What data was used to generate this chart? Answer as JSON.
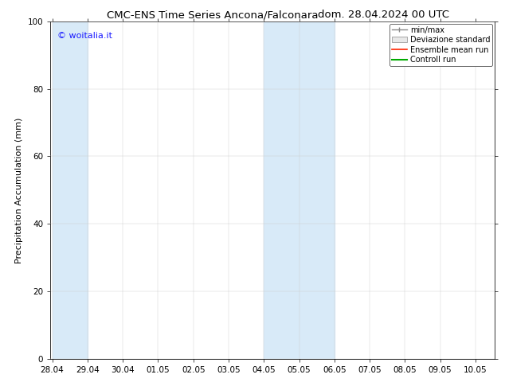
{
  "title_left": "CMC-ENS Time Series Ancona/Falconara",
  "title_right": "dom. 28.04.2024 00 UTC",
  "ylabel": "Precipitation Accumulation (mm)",
  "watermark": "© woitalia.it",
  "watermark_color": "#1a1aff",
  "ylim": [
    0,
    100
  ],
  "x_tick_labels": [
    "28.04",
    "29.04",
    "30.04",
    "01.05",
    "02.05",
    "03.05",
    "04.05",
    "05.05",
    "06.05",
    "07.05",
    "08.05",
    "09.05",
    "10.05"
  ],
  "x_tick_positions": [
    0,
    1,
    2,
    3,
    4,
    5,
    6,
    7,
    8,
    9,
    10,
    11,
    12
  ],
  "shaded_bands": [
    {
      "x_start": 0.0,
      "x_end": 1.0
    },
    {
      "x_start": 6.0,
      "x_end": 8.0
    }
  ],
  "shaded_color": "#d8eaf8",
  "background_color": "#ffffff",
  "plot_bg_color": "#ffffff",
  "grid_color": "#cccccc",
  "border_color": "#333333",
  "legend_entries": [
    {
      "label": "min/max",
      "color": "#999999",
      "style": "line"
    },
    {
      "label": "Deviazione standard",
      "color": "#dddddd",
      "style": "fill"
    },
    {
      "label": "Ensemble mean run",
      "color": "#ff0000",
      "style": "line"
    },
    {
      "label": "Controll run",
      "color": "#00aa00",
      "style": "line"
    }
  ],
  "title_fontsize": 9.5,
  "axis_label_fontsize": 8,
  "tick_fontsize": 7.5,
  "watermark_fontsize": 8,
  "legend_fontsize": 7
}
